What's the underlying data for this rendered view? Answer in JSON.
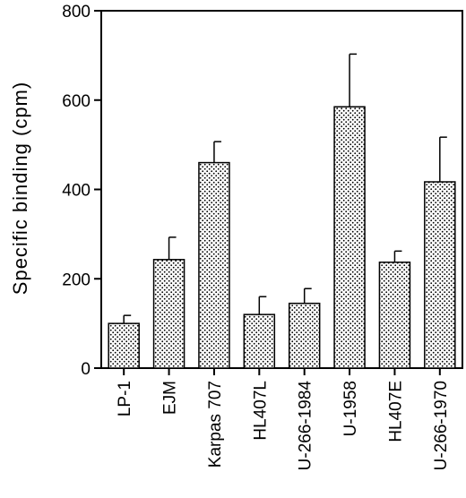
{
  "chart_data": {
    "type": "bar",
    "title": "",
    "xlabel": "",
    "ylabel": "Specific  binding  (cpm)",
    "ylim": [
      0,
      800
    ],
    "yticks": [
      0,
      200,
      400,
      600,
      800
    ],
    "categories": [
      "LP-1",
      "EJM",
      "Karpas 707",
      "HL407L",
      "U-266-1984",
      "U-1958",
      "HL407E",
      "U-266-1970"
    ],
    "values": [
      100,
      243,
      460,
      120,
      145,
      585,
      237,
      417
    ],
    "error_upper": [
      18,
      50,
      47,
      40,
      33,
      118,
      25,
      100
    ],
    "bar_fill": "dotted-stipple",
    "grid": false,
    "legend": "none"
  },
  "colors": {
    "axis": "#000000",
    "bar_background": "#ffffff",
    "bar_dots": "#000000"
  }
}
